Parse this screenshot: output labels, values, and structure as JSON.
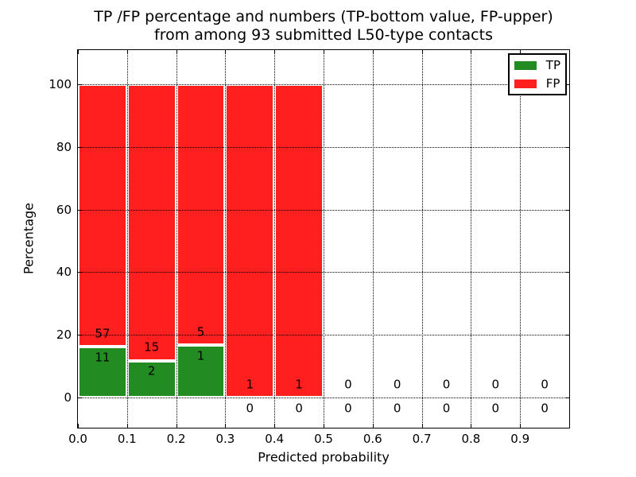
{
  "chart_data": {
    "type": "bar",
    "stacked": true,
    "title_line1": "TP /FP percentage and numbers (TP-bottom value, FP-upper)",
    "title_line2": "from among 93 submitted L50-type contacts",
    "xlabel": "Predicted probability",
    "ylabel": "Percentage",
    "total_submitted": 93,
    "categories": [
      "0.0-0.1",
      "0.1-0.2",
      "0.2-0.3",
      "0.3-0.4",
      "0.4-0.5",
      "0.5-0.6",
      "0.6-0.7",
      "0.7-0.8",
      "0.8-0.9",
      "0.9-1.0"
    ],
    "bin_width": 0.1,
    "series": [
      {
        "name": "TP",
        "color": "#228b22",
        "counts": [
          11,
          2,
          1,
          0,
          0,
          0,
          0,
          0,
          0,
          0
        ],
        "pct": [
          16.18,
          11.76,
          16.67,
          0,
          0,
          0,
          0,
          0,
          0,
          0
        ]
      },
      {
        "name": "FP",
        "color": "#ff1f1f",
        "counts": [
          57,
          15,
          5,
          1,
          1,
          0,
          0,
          0,
          0,
          0
        ],
        "pct": [
          83.82,
          88.24,
          83.33,
          100,
          100,
          0,
          0,
          0,
          0,
          0
        ]
      }
    ],
    "x_ticks": [
      "0.0",
      "0.1",
      "0.2",
      "0.3",
      "0.4",
      "0.5",
      "0.6",
      "0.7",
      "0.8",
      "0.9"
    ],
    "y_ticks": [
      "0",
      "20",
      "40",
      "60",
      "80",
      "100"
    ],
    "xlim": [
      0,
      1
    ],
    "ylim": [
      -9.6,
      110.9
    ],
    "grid": true,
    "grid_style": "dotted",
    "legend": {
      "position": "upper right",
      "entries": [
        {
          "label": "TP",
          "color": "#228b22"
        },
        {
          "label": "FP",
          "color": "#ff1f1f"
        }
      ]
    }
  }
}
